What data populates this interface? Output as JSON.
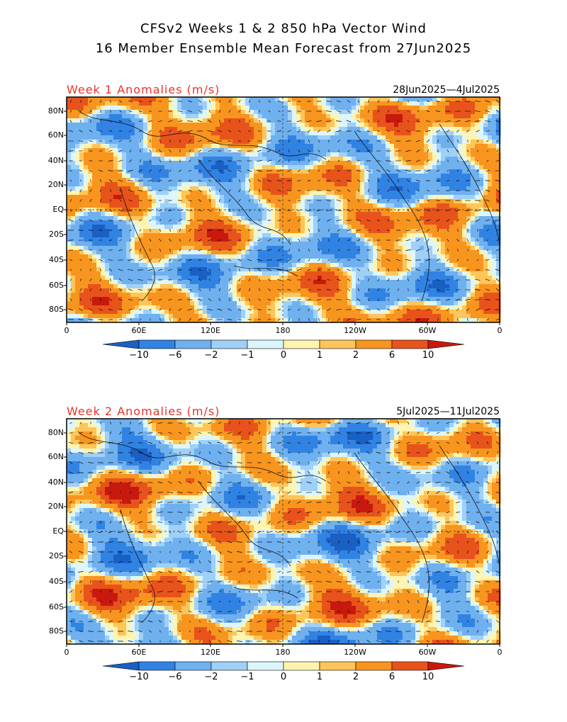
{
  "title": {
    "line1": "CFSv2 Weeks 1 & 2 850 hPa Vector Wind",
    "line2": "16 Member Ensemble Mean Forecast from 27Jun2025"
  },
  "panels": [
    {
      "title": "Week 1 Anomalies (m/s)",
      "dates": "28Jun2025—4Jul2025"
    },
    {
      "title": "Week 2 Anomalies (m/s)",
      "dates": "5Jul2025—11Jul2025"
    }
  ],
  "lat_labels": [
    "80N",
    "60N",
    "40N",
    "20N",
    "EQ",
    "20S",
    "40S",
    "60S",
    "80S"
  ],
  "lon_labels": [
    "0",
    "60E",
    "120E",
    "180",
    "120W",
    "60W",
    "0"
  ],
  "colorbar": {
    "ticks": [
      "−10",
      "−6",
      "−2",
      "−1",
      "0",
      "1",
      "2",
      "6",
      "10"
    ],
    "colors": [
      "#1a5fc4",
      "#3183e3",
      "#6fb0ef",
      "#9fd0f7",
      "#dcf6fb",
      "#fff4b0",
      "#fdc55a",
      "#f7951f",
      "#e8531c",
      "#c8190e"
    ]
  }
}
